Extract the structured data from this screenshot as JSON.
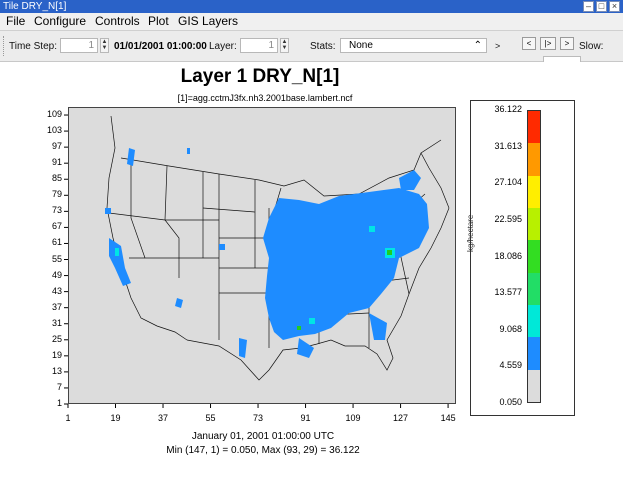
{
  "window": {
    "title": "Tile DRY_N[1]"
  },
  "menu": [
    "File",
    "Configure",
    "Controls",
    "Plot",
    "GIS Layers"
  ],
  "toolbar": {
    "time_step_label": "Time Step:",
    "time_step_value": "1",
    "date": "01/01/2001 01:00:00",
    "layer_label": "Layer:",
    "layer_value": "1",
    "stats_label": "Stats:",
    "stats_value": "None",
    "nav_prev": "<",
    "nav_play": "|>",
    "nav_next": ">",
    "nav_end": ">",
    "slow_label": "Slow:"
  },
  "plot": {
    "title": "Layer 1 DRY_N[1]",
    "subtitle": "[1]=agg.cctmJ3fx.nh3.2001base.lambert.ncf",
    "date_footer": "January 01, 2001 01:00:00 UTC",
    "minmax_footer": "Min (147, 1) = 0.050, Max (93, 29) = 36.122"
  },
  "colors": {
    "land": "#dcdcdc",
    "blue": "#1e8cff",
    "cyan": "#00e5e5",
    "green": "#22cc22"
  },
  "chart_data": {
    "type": "heatmap",
    "title": "Layer 1 DRY_N[1]",
    "subtitle": "[1]=agg.cctmJ3fx.nh3.2001base.lambert.ncf",
    "x_ticks": [
      "1",
      "19",
      "37",
      "55",
      "73",
      "91",
      "109",
      "127",
      "145"
    ],
    "y_ticks": [
      "1",
      "7",
      "13",
      "19",
      "25",
      "31",
      "37",
      "43",
      "49",
      "55",
      "61",
      "67",
      "73",
      "79",
      "85",
      "91",
      "97",
      "103",
      "109"
    ],
    "xlim": [
      1,
      148
    ],
    "ylim": [
      1,
      112
    ],
    "legend": {
      "units": "kg/hectare",
      "ticks": [
        "36.122",
        "31.613",
        "27.104",
        "22.595",
        "18.086",
        "13.577",
        "9.068",
        "4.559",
        "0.050"
      ],
      "colors": [
        "#ff2a00",
        "#ff9900",
        "#ffee00",
        "#b8f000",
        "#33dd22",
        "#22dd66",
        "#00e8d8",
        "#1e8cff",
        "#dcdcdc"
      ]
    },
    "min": {
      "col": 147,
      "row": 1,
      "value": "0.050"
    },
    "max": {
      "col": 93,
      "row": 29,
      "value": "36.122"
    }
  }
}
